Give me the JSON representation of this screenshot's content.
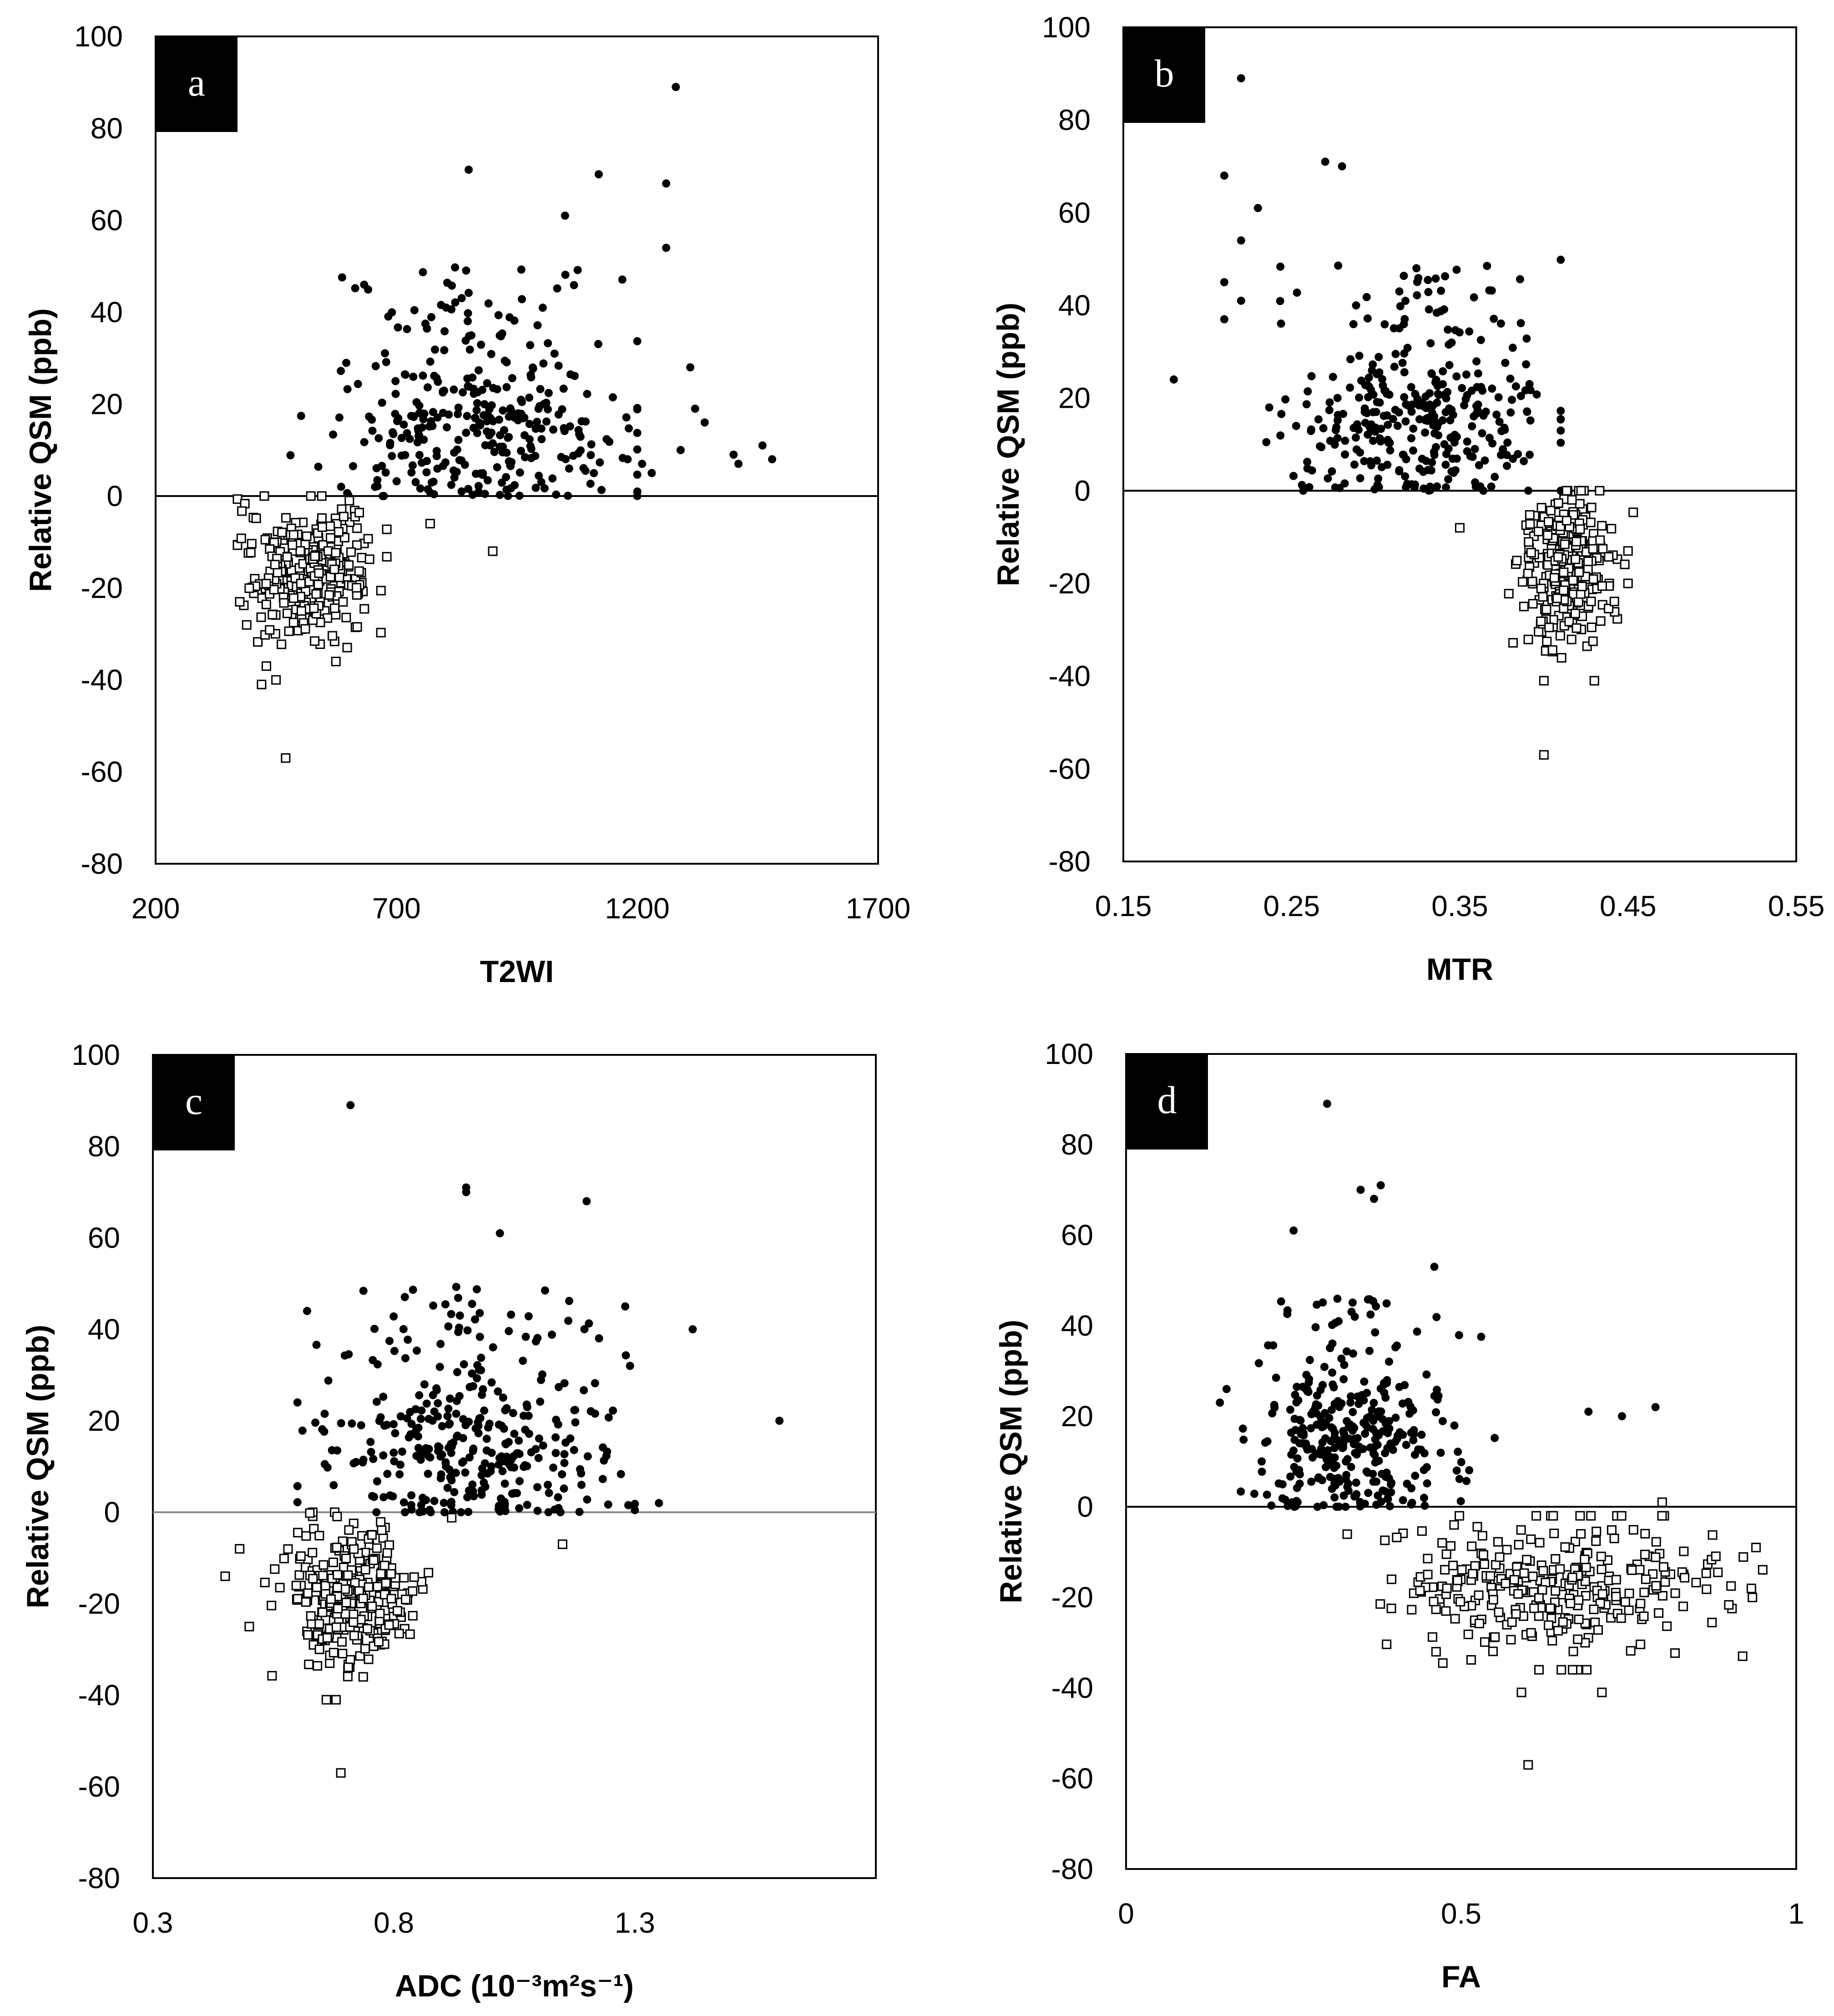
{
  "chart_data": [
    {
      "type": "scatter",
      "panel": "a",
      "xlabel": "T2WI",
      "ylabel": "Relative QSM (ppb)",
      "xlim": [
        200,
        1700
      ],
      "ylim": [
        -80,
        100
      ],
      "xticks": [
        "200",
        "700",
        "1200",
        "1700"
      ],
      "yticks": [
        "100",
        "80",
        "60",
        "40",
        "20",
        "0",
        "-20",
        "-40",
        "-60",
        "-80"
      ],
      "xtick_values": [
        200,
        700,
        1200,
        1700
      ],
      "ytick_values": [
        100,
        80,
        60,
        40,
        20,
        0,
        -20,
        -40,
        -60,
        -80
      ],
      "zero_line": true,
      "series": [
        {
          "name": "positive (filled circles)",
          "marker": "circle",
          "cluster": {
            "n": 340,
            "xmean": 860,
            "xsd": 150,
            "xmin": 480,
            "xmax": 1200,
            "ymin": 0,
            "ymax": 50,
            "ymode": 14
          }
        },
        {
          "name": "negative (open squares)",
          "marker": "square",
          "cluster": {
            "n": 290,
            "xmean": 520,
            "xsd": 65,
            "xmin": 370,
            "xmax": 680,
            "ymin": -36,
            "ymax": 0,
            "ymode": -16
          }
        }
      ],
      "outliers_positive": [
        [
          1280,
          89
        ],
        [
          850,
          71
        ],
        [
          1120,
          70
        ],
        [
          1260,
          68
        ],
        [
          1050,
          61
        ],
        [
          1260,
          54
        ],
        [
          1310,
          28
        ],
        [
          1320,
          19
        ],
        [
          1340,
          16
        ],
        [
          1460,
          11
        ],
        [
          1480,
          8
        ],
        [
          1400,
          9
        ],
        [
          1410,
          7
        ],
        [
          1290,
          10
        ],
        [
          1230,
          5
        ],
        [
          1180,
          8
        ],
        [
          1210,
          7
        ]
      ],
      "outliers_negative": [
        [
          470,
          -57
        ],
        [
          420,
          -41
        ],
        [
          450,
          -40
        ],
        [
          430,
          -37
        ],
        [
          900,
          -12
        ],
        [
          770,
          -6
        ]
      ]
    },
    {
      "type": "scatter",
      "panel": "b",
      "xlabel": "MTR",
      "ylabel": "Relative QSM (ppb)",
      "xlim": [
        0.15,
        0.55
      ],
      "ylim": [
        -80,
        100
      ],
      "xticks": [
        "0.15",
        "0.25",
        "0.35",
        "0.45",
        "0.55"
      ],
      "yticks": [
        "100",
        "80",
        "60",
        "40",
        "20",
        "0",
        "-20",
        "-40",
        "-60",
        "-80"
      ],
      "xtick_values": [
        0.15,
        0.25,
        0.35,
        0.45,
        0.55
      ],
      "ytick_values": [
        100,
        80,
        60,
        40,
        20,
        0,
        -20,
        -40,
        -60,
        -80
      ],
      "zero_line": true,
      "series": [
        {
          "name": "positive (filled circles)",
          "marker": "circle",
          "cluster": {
            "n": 340,
            "xmean": 0.325,
            "xsd": 0.038,
            "xmin": 0.235,
            "xmax": 0.41,
            "ymin": 0,
            "ymax": 50,
            "ymode": 15
          }
        },
        {
          "name": "negative (open squares)",
          "marker": "square",
          "cluster": {
            "n": 290,
            "xmean": 0.415,
            "xsd": 0.014,
            "xmin": 0.37,
            "xmax": 0.455,
            "ymin": -37,
            "ymax": 0,
            "ymode": -16
          }
        }
      ],
      "outliers_positive": [
        [
          0.18,
          24
        ],
        [
          0.22,
          89
        ],
        [
          0.21,
          68
        ],
        [
          0.27,
          71
        ],
        [
          0.28,
          70
        ],
        [
          0.23,
          61
        ],
        [
          0.22,
          54
        ],
        [
          0.21,
          45
        ],
        [
          0.21,
          37
        ],
        [
          0.22,
          41
        ]
      ],
      "outliers_negative": [
        [
          0.4,
          -57
        ],
        [
          0.4,
          -41
        ],
        [
          0.43,
          -41
        ],
        [
          0.35,
          -8
        ],
        [
          0.45,
          -13
        ],
        [
          0.45,
          -20
        ]
      ]
    },
    {
      "type": "scatter",
      "panel": "c",
      "xlabel": "ADC (10⁻³m²s⁻¹)",
      "ylabel": "Relative QSM (ppb)",
      "xlim": [
        0.3,
        1.8
      ],
      "ylim": [
        -80,
        100
      ],
      "xticks": [
        "0.3",
        "0.8",
        "1.3"
      ],
      "yticks": [
        "100",
        "80",
        "60",
        "40",
        "20",
        "0",
        "-20",
        "-40",
        "-60",
        "-80"
      ],
      "xtick_values": [
        0.3,
        0.8,
        1.3
      ],
      "ytick_values": [
        100,
        80,
        60,
        40,
        20,
        0,
        -20,
        -40,
        -60,
        -80
      ],
      "zero_line": true,
      "series": [
        {
          "name": "positive (filled circles)",
          "marker": "circle",
          "cluster": {
            "n": 340,
            "xmean": 0.95,
            "xsd": 0.16,
            "xmin": 0.6,
            "xmax": 1.3,
            "ymin": 0,
            "ymax": 50,
            "ymode": 14
          }
        },
        {
          "name": "negative (open squares)",
          "marker": "square",
          "cluster": {
            "n": 290,
            "xmean": 0.71,
            "xsd": 0.07,
            "xmin": 0.52,
            "xmax": 0.92,
            "ymin": -36,
            "ymax": 0,
            "ymode": -18
          }
        }
      ],
      "outliers_positive": [
        [
          0.71,
          89
        ],
        [
          0.95,
          71
        ],
        [
          0.95,
          70
        ],
        [
          1.2,
          68
        ],
        [
          1.02,
          61
        ],
        [
          1.42,
          40
        ],
        [
          1.6,
          20
        ],
        [
          1.35,
          2
        ],
        [
          1.29,
          32
        ],
        [
          1.28,
          45
        ],
        [
          0.6,
          24
        ],
        [
          0.62,
          44
        ]
      ],
      "outliers_negative": [
        [
          0.69,
          -57
        ],
        [
          0.66,
          -41
        ],
        [
          0.68,
          -41
        ],
        [
          0.45,
          -14
        ],
        [
          0.5,
          -25
        ],
        [
          1.15,
          -7
        ],
        [
          0.48,
          -8
        ]
      ]
    },
    {
      "type": "scatter",
      "panel": "d",
      "xlabel": "FA",
      "ylabel": "Relative QSM (ppb)",
      "xlim": [
        0,
        1
      ],
      "ylim": [
        -80,
        100
      ],
      "xticks": [
        "0",
        "0.5",
        "1"
      ],
      "yticks": [
        "100",
        "80",
        "60",
        "40",
        "20",
        "0",
        "-20",
        "-40",
        "-60",
        "-80"
      ],
      "xtick_values": [
        0,
        0.5,
        1
      ],
      "ytick_values": [
        100,
        80,
        60,
        40,
        20,
        0,
        -20,
        -40,
        -60,
        -80
      ],
      "zero_line": true,
      "series": [
        {
          "name": "positive (filled circles)",
          "marker": "circle",
          "cluster": {
            "n": 340,
            "xmean": 0.34,
            "xsd": 0.07,
            "xmin": 0.15,
            "xmax": 0.55,
            "ymin": 0,
            "ymax": 46,
            "ymode": 14
          }
        },
        {
          "name": "negative (open squares)",
          "marker": "square",
          "cluster": {
            "n": 290,
            "xmean": 0.65,
            "xsd": 0.12,
            "xmin": 0.33,
            "xmax": 0.95,
            "ymin": -36,
            "ymax": -2,
            "ymode": -17
          }
        }
      ],
      "outliers_positive": [
        [
          0.3,
          89
        ],
        [
          0.38,
          71
        ],
        [
          0.35,
          70
        ],
        [
          0.37,
          68
        ],
        [
          0.25,
          61
        ],
        [
          0.46,
          53
        ],
        [
          0.69,
          21
        ],
        [
          0.74,
          20
        ],
        [
          0.79,
          22
        ],
        [
          0.14,
          23
        ],
        [
          0.15,
          26
        ]
      ],
      "outliers_negative": [
        [
          0.6,
          -57
        ],
        [
          0.59,
          -41
        ],
        [
          0.71,
          -41
        ],
        [
          0.8,
          1
        ],
        [
          0.94,
          -9
        ],
        [
          0.92,
          -33
        ]
      ]
    }
  ]
}
